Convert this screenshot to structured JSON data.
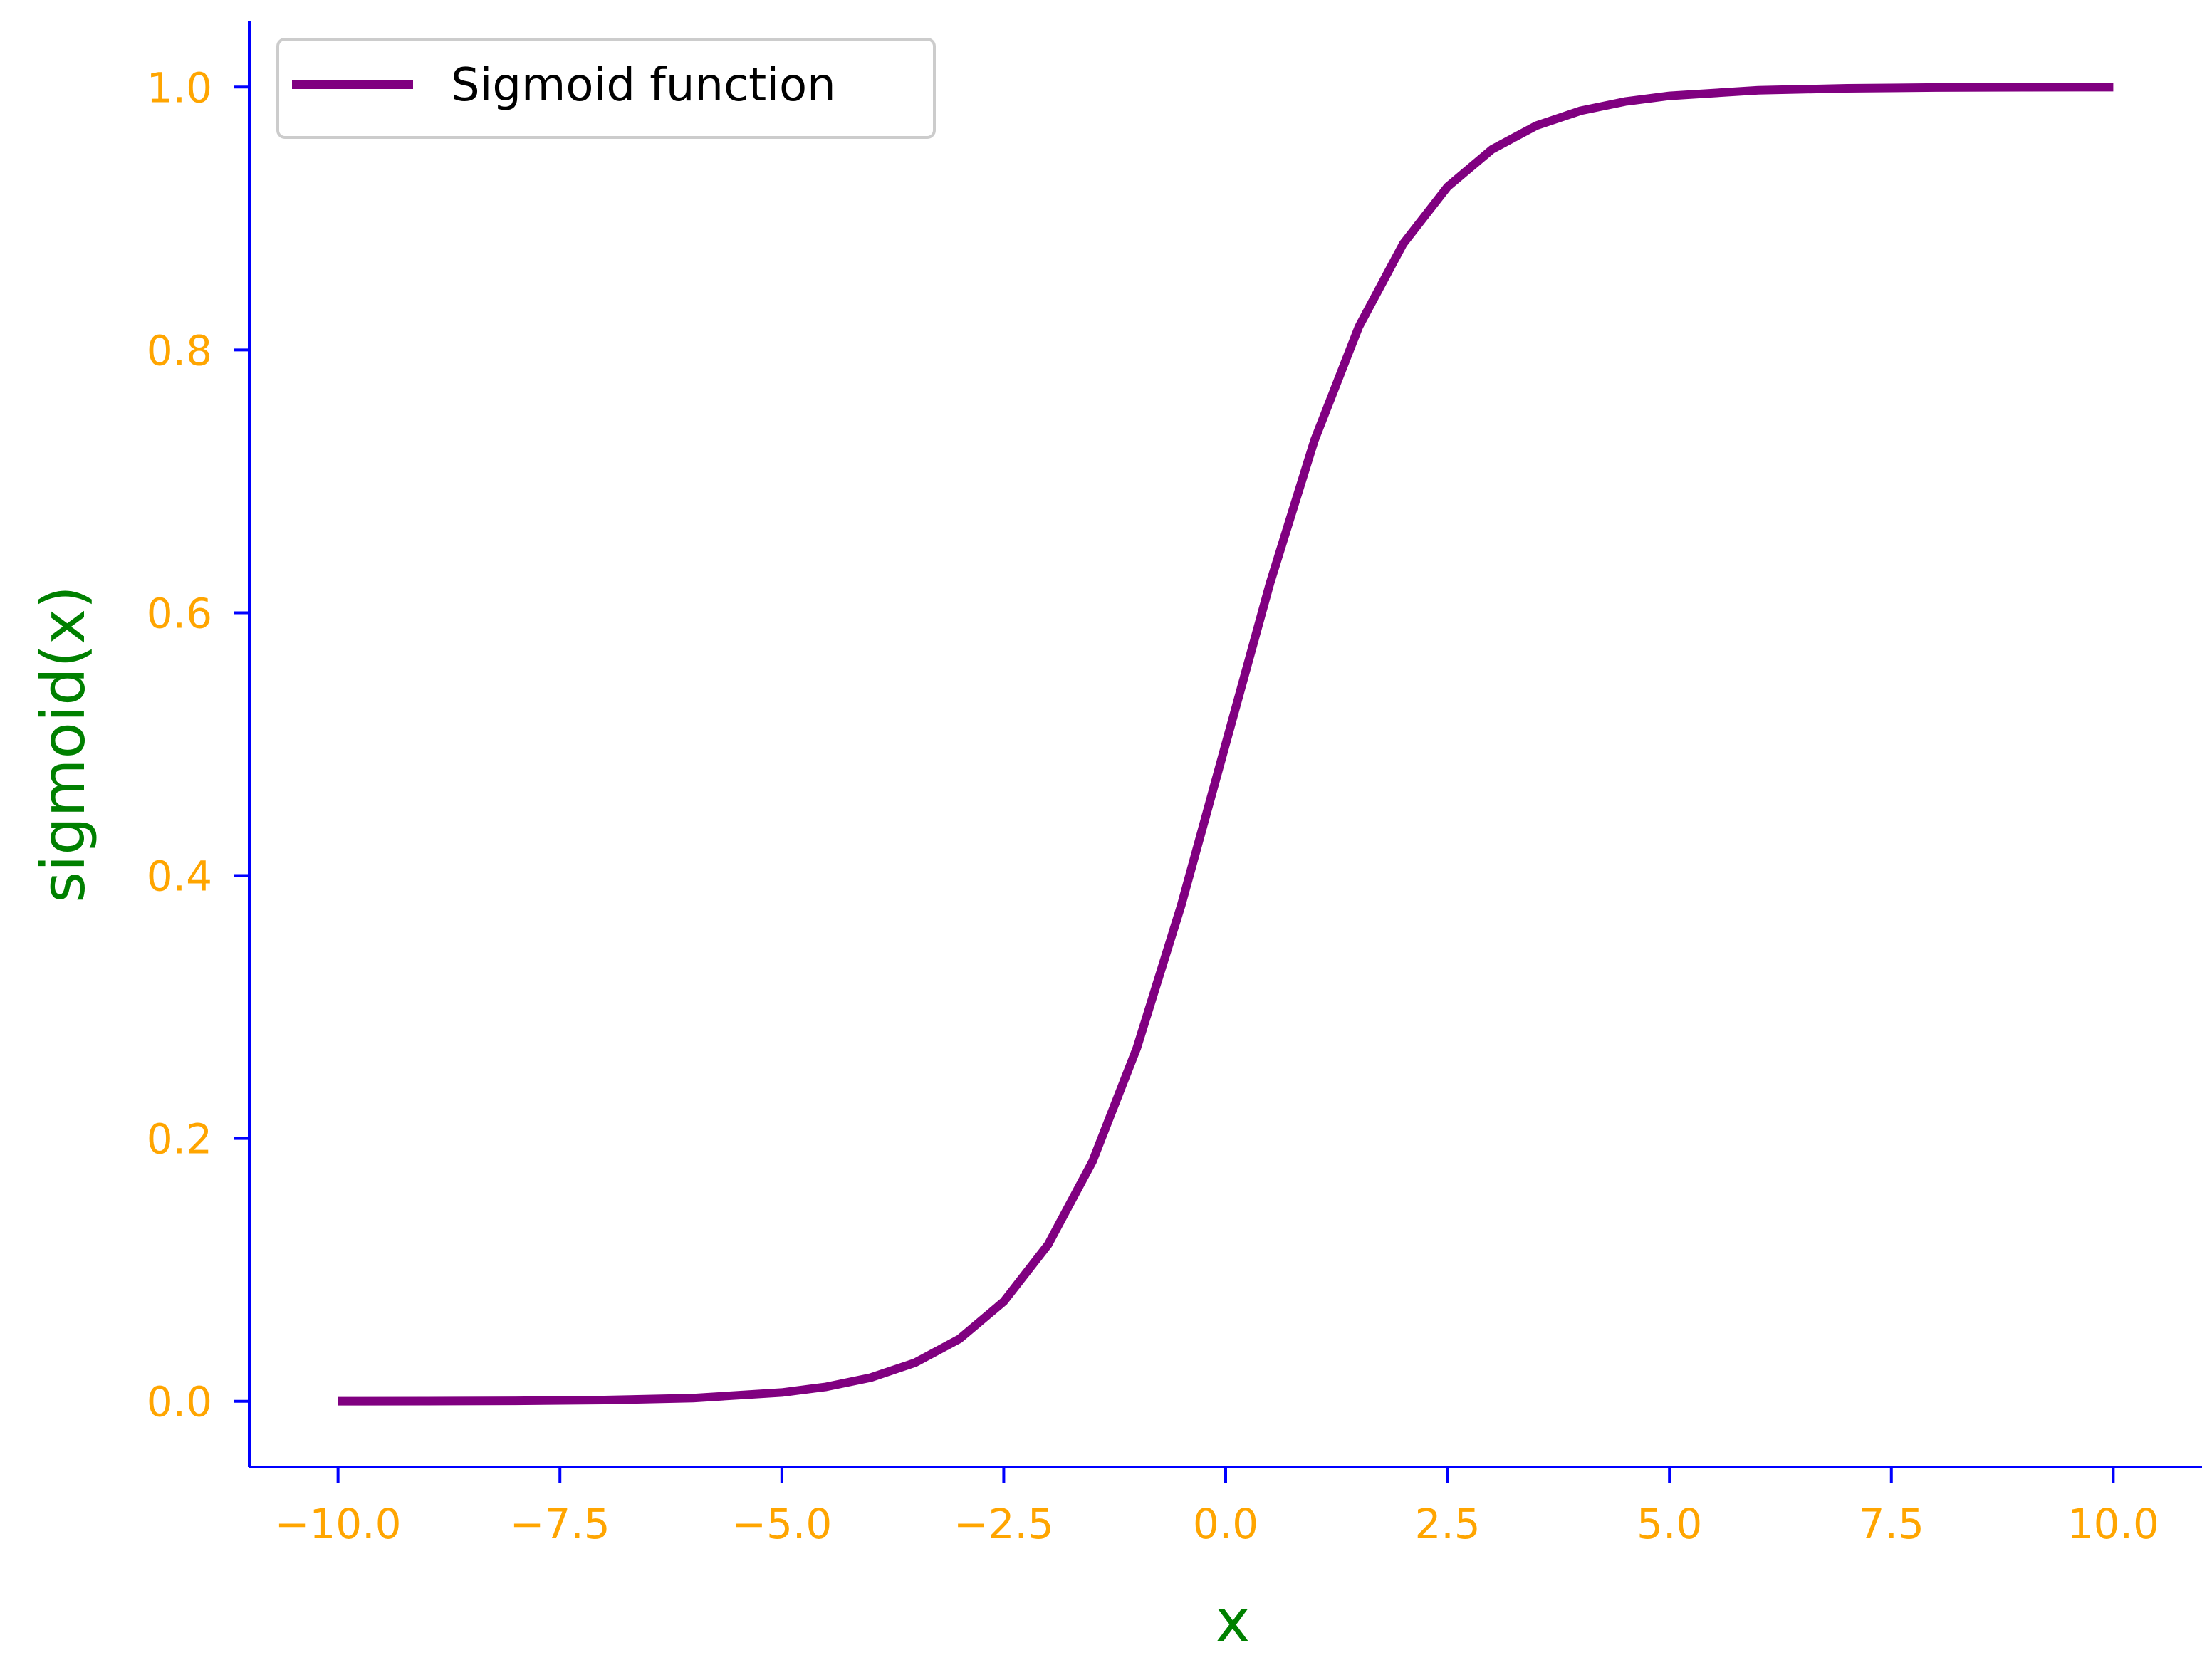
{
  "chart_data": {
    "type": "line",
    "title": "",
    "xlabel": "x",
    "ylabel": "sigmoid(x)",
    "xlim": [
      -11,
      11
    ],
    "ylim": [
      -0.05,
      1.05
    ],
    "x_ticks": [
      -10,
      -7.5,
      -5,
      -2.5,
      0,
      2.5,
      5,
      7.5,
      10
    ],
    "x_tick_labels": [
      "−10.0",
      "−7.5",
      "−5.0",
      "−2.5",
      "0.0",
      "2.5",
      "5.0",
      "7.5",
      "10.0"
    ],
    "y_ticks": [
      0,
      0.2,
      0.4,
      0.6,
      0.8,
      1.0
    ],
    "y_tick_labels": [
      "0.0",
      "0.2",
      "0.4",
      "0.6",
      "0.8",
      "1.0"
    ],
    "grid": false,
    "spines": [
      "left",
      "bottom"
    ],
    "legend": {
      "position": "top-left",
      "entries": [
        "Sigmoid function"
      ]
    },
    "colors": {
      "series": "#800080",
      "axis": "#0000ff",
      "tick_label": "#ffa500",
      "axis_title": "#008000"
    },
    "series": [
      {
        "name": "Sigmoid function",
        "x": [
          -10,
          -9,
          -8,
          -7,
          -6,
          -5,
          -4.5,
          -4,
          -3.5,
          -3,
          -2.5,
          -2,
          -1.5,
          -1,
          -0.5,
          0,
          0.5,
          1,
          1.5,
          2,
          2.5,
          3,
          3.5,
          4,
          4.5,
          5,
          6,
          7,
          8,
          9,
          10
        ],
        "y": [
          5e-05,
          0.00012,
          0.00034,
          0.00091,
          0.00247,
          0.00669,
          0.01099,
          0.01799,
          0.02931,
          0.04743,
          0.07586,
          0.1192,
          0.18243,
          0.26894,
          0.37754,
          0.5,
          0.62246,
          0.73106,
          0.81757,
          0.8808,
          0.92414,
          0.95257,
          0.97069,
          0.98201,
          0.98901,
          0.99331,
          0.99753,
          0.99909,
          0.99966,
          0.99988,
          0.99995
        ]
      }
    ]
  }
}
